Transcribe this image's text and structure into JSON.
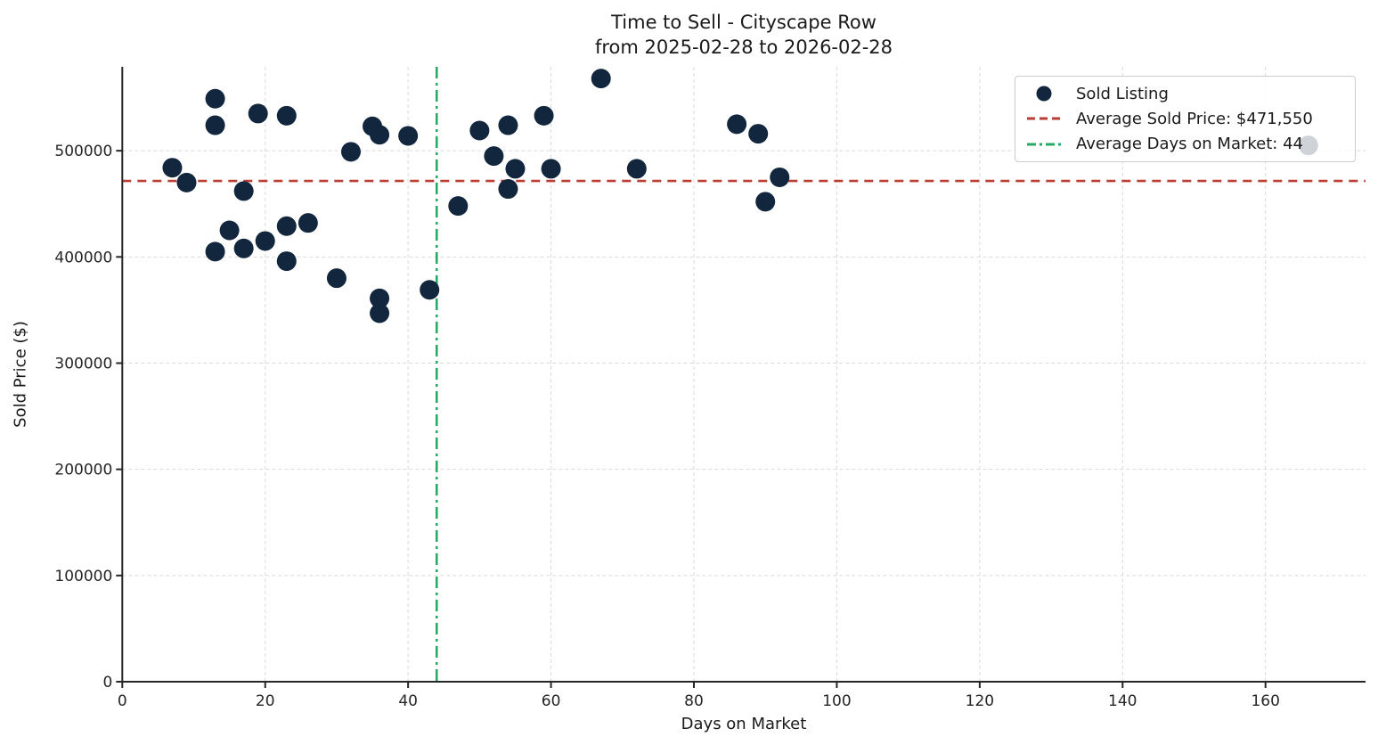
{
  "title": {
    "line1": "Time to Sell - Cityscape Row",
    "line2": "from 2025-02-28 to 2026-02-28"
  },
  "axes": {
    "xlabel": "Days on Market",
    "ylabel": "Sold Price ($)"
  },
  "legend": {
    "position": "upper right",
    "items": [
      {
        "label": "Sold Listing",
        "marker": "dot",
        "color": "#12263E"
      },
      {
        "label": "Average Sold Price: $471,550",
        "marker": "dashed-line",
        "color": "#BA3E34"
      },
      {
        "label": "Average Days on Market: 44",
        "marker": "dashdot-line",
        "color": "#28AA64"
      }
    ]
  },
  "chart_data": {
    "type": "scatter",
    "title": "Time to Sell - Cityscape Row",
    "subtitle": "from 2025-02-28 to 2026-02-28",
    "xlabel": "Days on Market",
    "ylabel": "Sold Price ($)",
    "xlim": [
      0,
      174
    ],
    "ylim": [
      0,
      579000
    ],
    "x_ticks": [
      0,
      20,
      40,
      60,
      80,
      100,
      120,
      140,
      160
    ],
    "y_ticks": [
      0,
      100000,
      200000,
      300000,
      400000,
      500000
    ],
    "grid": true,
    "legend_position": "upper right",
    "series": [
      {
        "name": "Sold Listing",
        "points": [
          [
            7,
            484000
          ],
          [
            9,
            470000
          ],
          [
            13,
            549000
          ],
          [
            13,
            524000
          ],
          [
            13,
            405000
          ],
          [
            15,
            425000
          ],
          [
            17,
            462000
          ],
          [
            17,
            408000
          ],
          [
            19,
            535000
          ],
          [
            20,
            415000
          ],
          [
            23,
            533000
          ],
          [
            23,
            429000
          ],
          [
            23,
            396000
          ],
          [
            26,
            432000
          ],
          [
            30,
            380000
          ],
          [
            32,
            499000
          ],
          [
            35,
            523000
          ],
          [
            36,
            515000
          ],
          [
            36,
            361000
          ],
          [
            36,
            347000
          ],
          [
            40,
            514000
          ],
          [
            43,
            369000
          ],
          [
            47,
            448000
          ],
          [
            50,
            519000
          ],
          [
            52,
            495000
          ],
          [
            54,
            524000
          ],
          [
            54,
            464000
          ],
          [
            55,
            483000
          ],
          [
            59,
            533000
          ],
          [
            60,
            483000
          ],
          [
            67,
            568000
          ],
          [
            72,
            483000
          ],
          [
            86,
            525000
          ],
          [
            89,
            516000
          ],
          [
            90,
            452000
          ],
          [
            92,
            475000
          ],
          [
            166,
            505000
          ]
        ]
      }
    ],
    "reference_lines": [
      {
        "orientation": "horizontal",
        "value": 471550,
        "style": "dashed",
        "color": "#BA3E34",
        "label": "Average Sold Price: $471,550"
      },
      {
        "orientation": "vertical",
        "value": 44,
        "style": "dashdot",
        "color": "#28AA64",
        "label": "Average Days on Market: 44"
      }
    ]
  },
  "colors": {
    "scatter": "#12263E",
    "avg_price_line": "#BA3E34",
    "avg_days_line": "#28AA64",
    "grid": "#D9D9D9",
    "axis": "#262626",
    "text": "#1A1A1A",
    "background": "#FFFFFF"
  }
}
